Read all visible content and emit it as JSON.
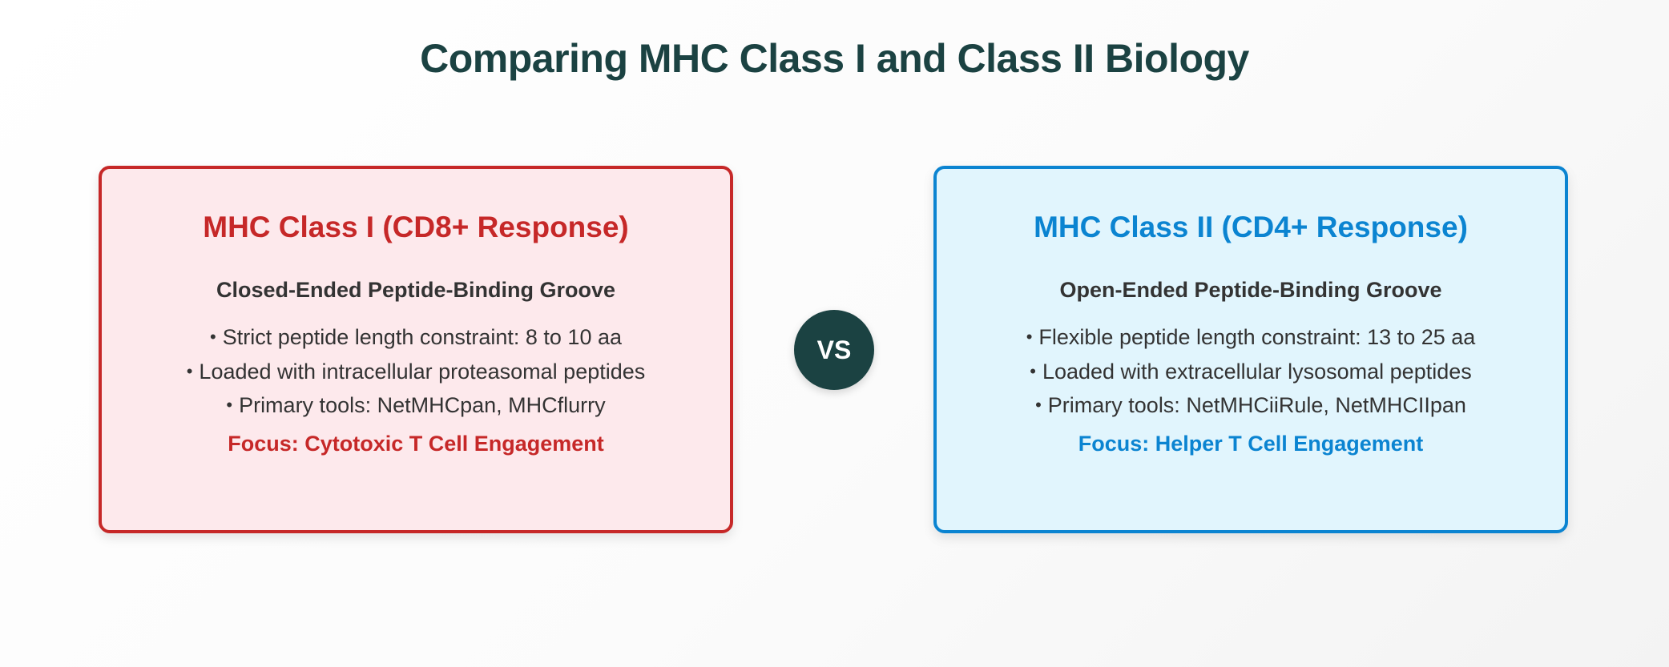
{
  "title": "Comparing MHC Class I and Class II Biology",
  "vs_label": "VS",
  "colors": {
    "title": "#1b4242",
    "class_i_accent": "#c62828",
    "class_i_background": "#fde9ec",
    "class_ii_accent": "#0b84d1",
    "class_ii_background": "#e1f5fd",
    "vs_badge": "#1b4242"
  },
  "class_i": {
    "title": "MHC Class I (CD8+ Response)",
    "subtitle": "Closed-Ended Peptide-Binding Groove",
    "bullets": [
      "Strict peptide length constraint: 8 to 10 aa",
      "Loaded with intracellular proteasomal peptides",
      "Primary tools: NetMHCpan, MHCflurry"
    ],
    "focus": "Focus: Cytotoxic T Cell Engagement"
  },
  "class_ii": {
    "title": "MHC Class II (CD4+ Response)",
    "subtitle": "Open-Ended Peptide-Binding Groove",
    "bullets": [
      "Flexible peptide length constraint: 13 to 25 aa",
      "Loaded with extracellular lysosomal peptides",
      "Primary tools: NetMHCiiRule, NetMHCIIpan"
    ],
    "focus": "Focus: Helper T Cell Engagement"
  }
}
